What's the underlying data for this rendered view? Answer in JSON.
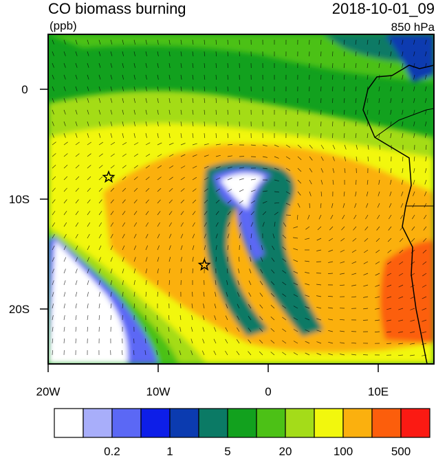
{
  "title": "CO biomass burning",
  "units": "(ppb)",
  "time": "2018-10-01_09",
  "level": "850 hPa",
  "lat_ticks": [
    "0",
    "10S",
    "20S"
  ],
  "lon_ticks": [
    "20W",
    "10W",
    "0",
    "10E"
  ],
  "colorbar": {
    "colors": [
      "#ffffff",
      "#a8aefa",
      "#5b68f5",
      "#0d1ee8",
      "#0b3bb0",
      "#0b7a65",
      "#12a11e",
      "#4cc116",
      "#a4dc19",
      "#f2f70d",
      "#fbb00e",
      "#fc5e0c",
      "#fb1a13"
    ],
    "labels": [
      "0.2",
      "1",
      "5",
      "20",
      "100",
      "500"
    ]
  },
  "markers": [
    {
      "name": "star-marker-1",
      "lon": -14.5,
      "lat": -8.0
    },
    {
      "name": "star-marker-2",
      "lon": -5.8,
      "lat": -16.0
    }
  ]
}
